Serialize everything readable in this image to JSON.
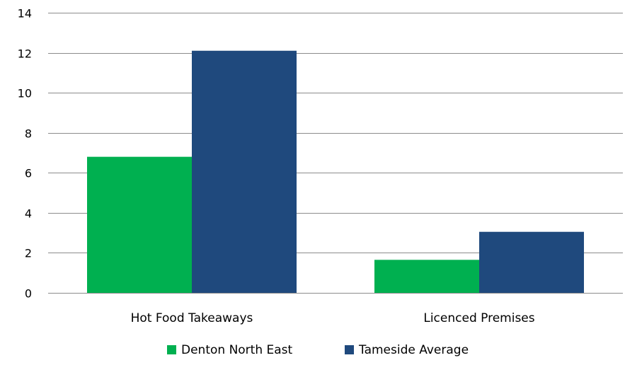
{
  "chart_data": {
    "type": "bar",
    "categories": [
      "Hot Food Takeaways",
      "Licenced Premises"
    ],
    "series": [
      {
        "name": "Denton North East",
        "values": [
          6.8,
          1.65
        ],
        "color": "#00b050"
      },
      {
        "name": "Tameside Average",
        "values": [
          12.1,
          3.05
        ],
        "color": "#1f497d"
      }
    ],
    "ylim": [
      0,
      14
    ],
    "yticks": [
      0,
      2,
      4,
      6,
      8,
      10,
      12,
      14
    ],
    "grid": true,
    "legend_position": "bottom"
  }
}
